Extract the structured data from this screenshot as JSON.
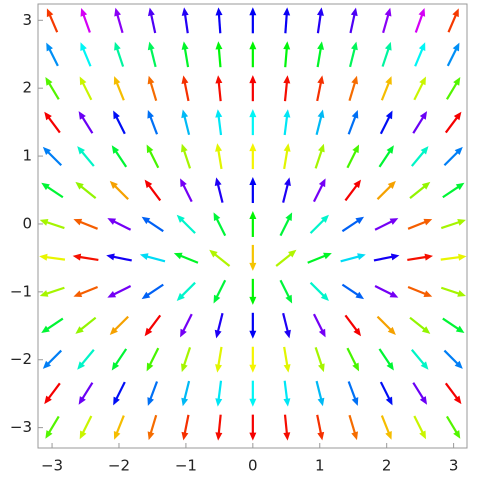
{
  "chart_data": {
    "type": "vector",
    "x": [
      -3,
      -2.5,
      -2,
      -1.5,
      -1,
      -0.5,
      0,
      0.5,
      1,
      1.5,
      2,
      2.5,
      3
    ],
    "y": [
      3,
      2.5,
      2,
      1.5,
      1,
      0.5,
      0,
      -0.5,
      -1,
      -1.5,
      -2,
      -2.5,
      -3
    ],
    "u": [
      [
        -3,
        -2.5,
        -2,
        -1.5,
        -1,
        -0.5,
        0,
        0.5,
        1,
        1.5,
        2,
        2.5,
        3
      ],
      [
        -3,
        -2.5,
        -2,
        -1.5,
        -1,
        -0.5,
        0,
        0.5,
        1,
        1.5,
        2,
        2.5,
        3
      ],
      [
        -3,
        -2.5,
        -2,
        -1.5,
        -1,
        -0.5,
        0,
        0.5,
        1,
        1.5,
        2,
        2.5,
        3
      ],
      [
        -3,
        -2.5,
        -2,
        -1.5,
        -1,
        -0.5,
        0,
        0.5,
        1,
        1.5,
        2,
        2.5,
        3
      ],
      [
        -3,
        -2.5,
        -2,
        -1.5,
        -1,
        -0.5,
        0,
        0.5,
        1,
        1.5,
        2,
        2.5,
        3
      ],
      [
        -3,
        -2.5,
        -2,
        -1.5,
        -1,
        -0.5,
        0,
        0.5,
        1,
        1.5,
        2,
        2.5,
        3
      ],
      [
        -3,
        -2.5,
        -2,
        -1.5,
        -1,
        -0.5,
        0,
        0.5,
        1,
        1.5,
        2,
        2.5,
        3
      ],
      [
        -3,
        -2.5,
        -2,
        -1.5,
        -1,
        -0.5,
        0,
        0.5,
        1,
        1.5,
        2,
        2.5,
        3
      ],
      [
        -3,
        -2.5,
        -2,
        -1.5,
        -1,
        -0.5,
        0,
        0.5,
        1,
        1.5,
        2,
        2.5,
        3
      ],
      [
        -3,
        -2.5,
        -2,
        -1.5,
        -1,
        -0.5,
        0,
        0.5,
        1,
        1.5,
        2,
        2.5,
        3
      ],
      [
        -3,
        -2.5,
        -2,
        -1.5,
        -1,
        -0.5,
        0,
        0.5,
        1,
        1.5,
        2,
        2.5,
        3
      ],
      [
        -3,
        -2.5,
        -2,
        -1.5,
        -1,
        -0.5,
        0,
        0.5,
        1,
        1.5,
        2,
        2.5,
        3
      ],
      [
        -3,
        -2.5,
        -2,
        -1.5,
        -1,
        -0.5,
        0,
        0.5,
        1,
        1.5,
        2,
        2.5,
        3
      ]
    ],
    "v": [
      [
        7,
        7,
        7,
        7,
        7,
        7,
        7,
        7,
        7,
        7,
        7,
        7,
        7
      ],
      [
        6,
        6,
        6,
        6,
        6,
        6,
        6,
        6,
        6,
        6,
        6,
        6,
        6
      ],
      [
        5,
        5,
        5,
        5,
        5,
        5,
        5,
        5,
        5,
        5,
        5,
        5,
        5
      ],
      [
        4,
        4,
        4,
        4,
        4,
        4,
        4,
        4,
        4,
        4,
        4,
        4,
        4
      ],
      [
        3,
        3,
        3,
        3,
        3,
        3,
        3,
        3,
        3,
        3,
        3,
        3,
        3
      ],
      [
        2,
        2,
        2,
        2,
        2,
        2,
        2,
        2,
        2,
        2,
        2,
        2,
        2
      ],
      [
        1,
        1,
        1,
        1,
        1,
        1,
        1,
        1,
        1,
        1,
        1,
        1,
        1
      ],
      [
        0.4,
        0.4,
        0.4,
        0.4,
        0.4,
        0.4,
        -0.4,
        0.4,
        0.4,
        0.4,
        0.4,
        0.4,
        0.4
      ],
      [
        -1,
        -1,
        -1,
        -1,
        -1,
        -1,
        -1,
        -1,
        -1,
        -1,
        -1,
        -1,
        -1
      ],
      [
        -2,
        -2,
        -2,
        -2,
        -2,
        -2,
        -2,
        -2,
        -2,
        -2,
        -2,
        -2,
        -2
      ],
      [
        -3,
        -3,
        -3,
        -3,
        -3,
        -3,
        -3,
        -3,
        -3,
        -3,
        -3,
        -3,
        -3
      ],
      [
        -4,
        -4,
        -4,
        -4,
        -4,
        -4,
        -4,
        -4,
        -4,
        -4,
        -4,
        -4,
        -4
      ],
      [
        -5,
        -5,
        -5,
        -5,
        -5,
        -5,
        -5,
        -5,
        -5,
        -5,
        -5,
        -5,
        -5
      ]
    ],
    "color_period": 2.5,
    "xlim": [
      -3.21,
      3.2
    ],
    "ylim": [
      -3.3,
      3.24
    ],
    "xticks": [
      {
        "value": -3,
        "label": "−3"
      },
      {
        "value": -2,
        "label": "−2"
      },
      {
        "value": -1,
        "label": "−1"
      },
      0,
      1,
      2,
      3
    ],
    "yticks": [
      {
        "value": -3,
        "label": "−3"
      },
      {
        "value": -2,
        "label": "−2"
      },
      {
        "value": -1,
        "label": "−1"
      },
      0,
      1,
      2,
      3
    ]
  }
}
